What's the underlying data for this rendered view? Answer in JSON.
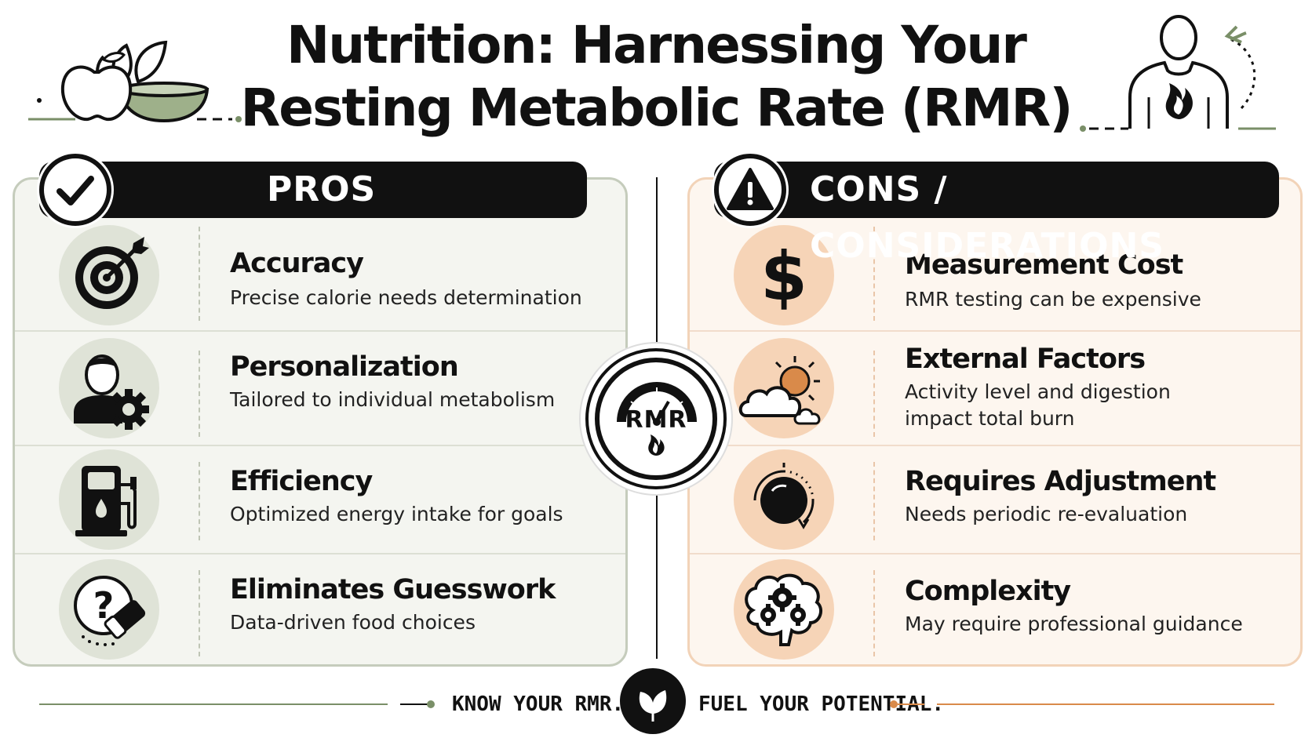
{
  "title": {
    "line1": "Nutrition: Harnessing Your",
    "line2": "Resting Metabolic Rate (RMR)"
  },
  "pros": {
    "header": "PROS",
    "icon": "checkmark-icon",
    "items": [
      {
        "title": "Accuracy",
        "desc": "Precise calorie needs determination",
        "icon": "target-icon"
      },
      {
        "title": "Personalization",
        "desc": "Tailored to individual metabolism",
        "icon": "person-gear-icon"
      },
      {
        "title": "Efficiency",
        "desc": "Optimized energy intake for goals",
        "icon": "fuel-pump-icon"
      },
      {
        "title": "Eliminates Guesswork",
        "desc": "Data-driven food choices",
        "icon": "question-eraser-icon"
      }
    ]
  },
  "cons": {
    "header": "CONS / CONSIDERATIONS",
    "icon": "warning-icon",
    "items": [
      {
        "title": "Measurement Cost",
        "desc": "RMR testing can be expensive",
        "icon": "dollar-icon"
      },
      {
        "title": "External Factors",
        "desc_lines": [
          "Activity level and digestion",
          "impact total burn"
        ],
        "icon": "sun-cloud-icon"
      },
      {
        "title": "Requires Adjustment",
        "desc": "Needs periodic re-evaluation",
        "icon": "dial-icon"
      },
      {
        "title": "Complexity",
        "desc": "May require professional guidance",
        "icon": "brain-gears-icon"
      }
    ]
  },
  "center_badge": {
    "label": "RMR",
    "icon": "gauge-flame-icon"
  },
  "footer": {
    "left": "KNOW YOUR RMR.",
    "right": "FUEL YOUR POTENTIAL.",
    "icon": "leaf-icon"
  },
  "colors": {
    "pros_bg": "#f4f5f0",
    "pros_accent": "#dfe3d7",
    "cons_bg": "#fdf6ef",
    "cons_accent": "#f6d4b7",
    "green": "#7a8f68",
    "orange": "#d98a4a",
    "dark": "#111111"
  }
}
